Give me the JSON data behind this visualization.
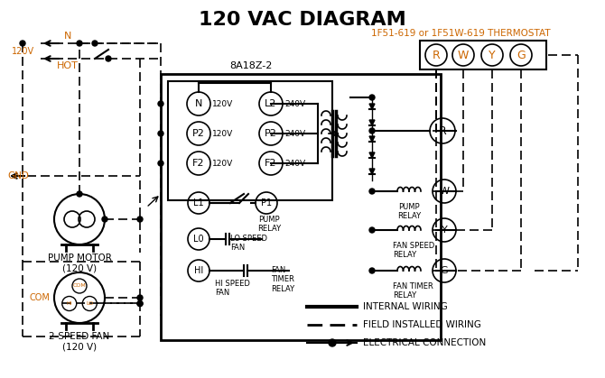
{
  "title": "120 VAC DIAGRAM",
  "title_fontsize": 16,
  "bg_color": "#ffffff",
  "orange_color": "#cc6600",
  "black_color": "#000000",
  "thermostat_label": "1F51-619 or 1F51W-619 THERMOSTAT",
  "board_label": "8A18Z-2",
  "terminal_labels_therm": [
    "R",
    "W",
    "Y",
    "G"
  ],
  "left_terminals": [
    "N",
    "P2",
    "F2"
  ],
  "left_voltages": [
    "120V",
    "120V",
    "120V"
  ],
  "right_terminals": [
    "L2",
    "P2",
    "F2"
  ],
  "right_voltages": [
    "240V",
    "240V",
    "240V"
  ],
  "legend_items": [
    "INTERNAL WIRING",
    "FIELD INSTALLED WIRING",
    "ELECTRICAL CONNECTION"
  ],
  "pump_motor_label": "PUMP MOTOR\n(120 V)",
  "fan_label": "2-SPEED FAN\n(120 V)"
}
